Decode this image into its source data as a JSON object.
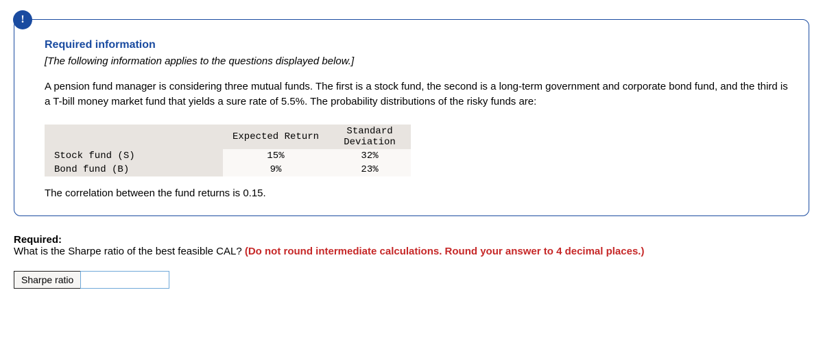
{
  "info_badge": "!",
  "heading": "Required information",
  "italic_note": "[The following information applies to the questions displayed below.]",
  "body_text": "A pension fund manager is considering three mutual funds. The first is a stock fund, the second is a long-term government and corporate bond fund, and the third is a T-bill money market fund that yields a sure rate of 5.5%. The probability distributions of the risky funds are:",
  "table": {
    "headers": {
      "blank": "",
      "col1": "Expected Return",
      "col2": "Standard Deviation"
    },
    "rows": [
      {
        "label": "Stock fund (S)",
        "ret": "15%",
        "sd": "32%"
      },
      {
        "label": "Bond fund (B)",
        "ret": "9%",
        "sd": "23%"
      }
    ],
    "header_bg": "#e8e4e0",
    "row_bg": "#faf8f6"
  },
  "correlation_text": "The correlation between the fund returns is 0.15.",
  "required": {
    "label": "Required:",
    "question": "What is the Sharpe ratio of the best feasible CAL? ",
    "hint": "(Do not round intermediate calculations. Round your answer to 4 decimal places.)"
  },
  "answer": {
    "label": "Sharpe ratio",
    "value": ""
  },
  "colors": {
    "brand": "#1a4ba0",
    "hint_red": "#c62828",
    "input_border": "#6fa8d8"
  }
}
